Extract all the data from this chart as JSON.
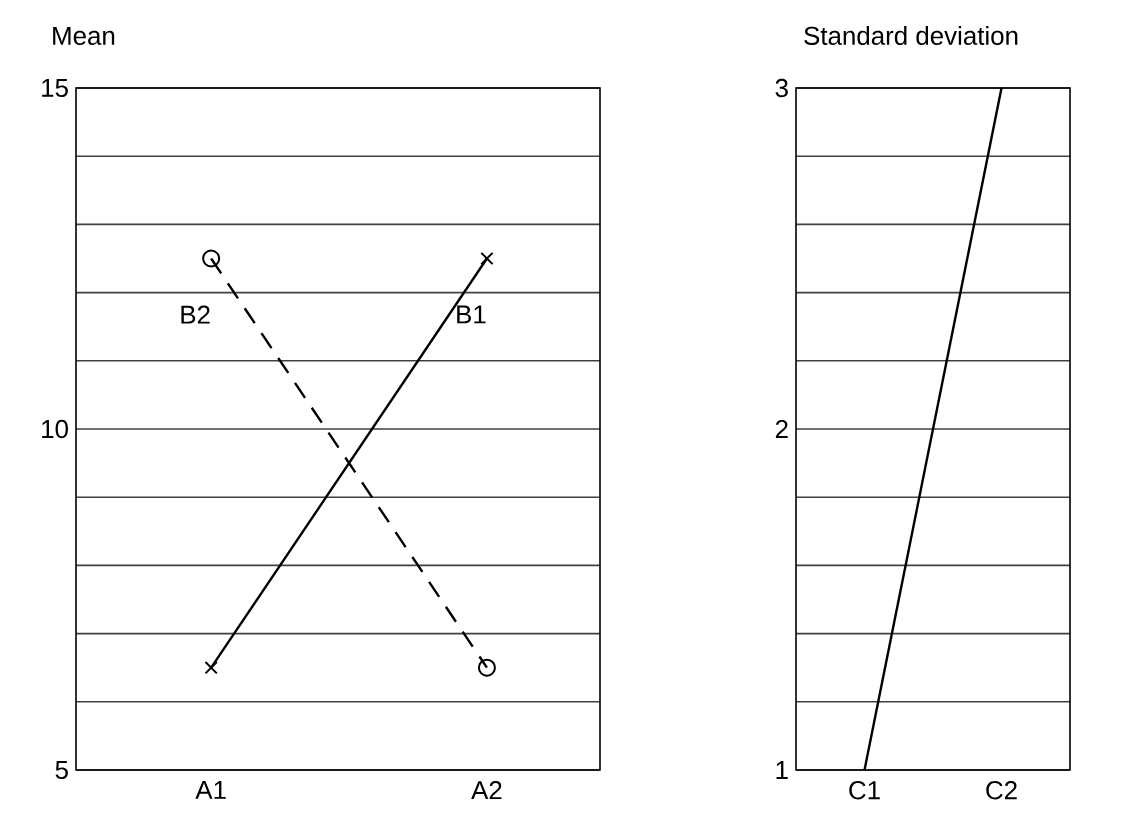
{
  "chart_data": [
    {
      "type": "line",
      "title": "Mean",
      "categories": [
        "A1",
        "A2"
      ],
      "series": [
        {
          "name": "B1",
          "color": "#000000",
          "values": [
            6.5,
            12.5
          ],
          "marker": "cross",
          "line_style": "solid"
        },
        {
          "name": "B2",
          "color": "#000000",
          "values": [
            12.5,
            6.5
          ],
          "marker": "circle",
          "line_style": "dashed"
        }
      ],
      "ylim": [
        5,
        15
      ],
      "yticks": [
        5,
        {
          "value": 6,
          "label": null
        },
        {
          "value": 7,
          "label": null
        },
        {
          "value": 8,
          "label": null
        },
        {
          "value": 9,
          "label": null
        },
        10,
        {
          "value": 11,
          "label": null
        },
        {
          "value": 12,
          "label": null
        },
        {
          "value": 13,
          "label": null
        },
        {
          "value": 14,
          "label": null
        },
        15
      ],
      "grid": "y"
    },
    {
      "type": "line",
      "title": "Standard deviation",
      "categories": [
        "C1",
        "C2"
      ],
      "series": [
        {
          "color": "#000000",
          "values": [
            1,
            3
          ]
        }
      ],
      "ylim": [
        1,
        3
      ],
      "yticks": [
        1,
        {
          "value": 1.2,
          "label": null
        },
        {
          "value": 1.4,
          "label": null
        },
        {
          "value": 1.6,
          "label": null
        },
        {
          "value": 1.8,
          "label": null
        },
        2,
        {
          "value": 2.2,
          "label": null
        },
        {
          "value": 2.4,
          "label": null
        },
        {
          "value": 2.6,
          "label": null
        },
        {
          "value": 2.8,
          "label": null
        },
        3
      ],
      "grid": "y"
    }
  ]
}
